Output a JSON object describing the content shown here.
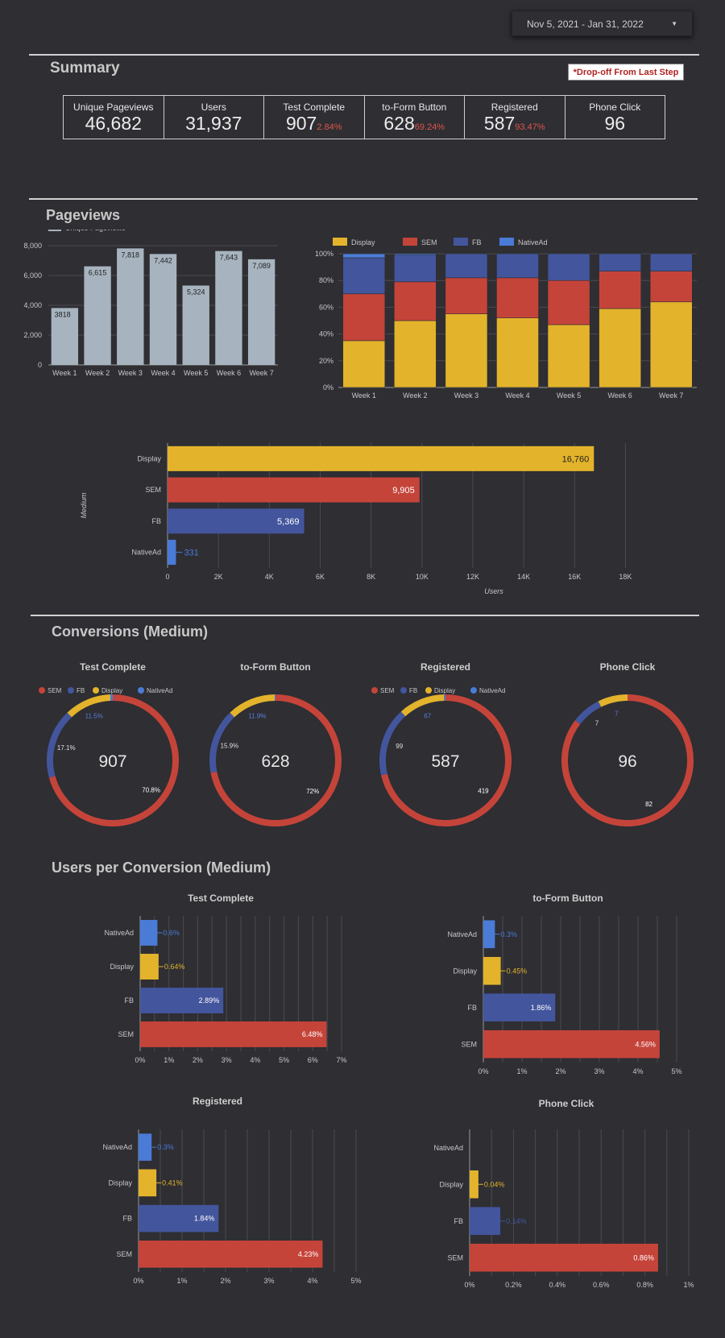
{
  "date_range": {
    "label": "Nov 5, 2021 - Jan 31, 2022",
    "arrow_icon": "caret-down-icon"
  },
  "summary": {
    "title": "Summary",
    "note": "*Drop-off From Last Step",
    "kpis": [
      {
        "label": "Unique Pageviews",
        "value": "46,682",
        "pct": ""
      },
      {
        "label": "Users",
        "value": "31,937",
        "pct": ""
      },
      {
        "label": "Test Complete",
        "value": "907",
        "pct": "2.84%"
      },
      {
        "label": "to-Form Button",
        "value": "628",
        "pct": "69.24%"
      },
      {
        "label": "Registered",
        "value": "587",
        "pct": "93.47%"
      },
      {
        "label": "Phone Click",
        "value": "96",
        "pct": ""
      }
    ]
  },
  "sections": {
    "pageviews": "Pageviews",
    "conversions": "Conversions (Medium)",
    "users_per_conversion": "Users per Conversion (Medium)"
  },
  "colors": {
    "Display": "#e3b32b",
    "SEM": "#c5443a",
    "FB": "#43559c",
    "NativeAd": "#4a7bd6",
    "Pageviews": "#a7b4bf"
  },
  "chart_data": [
    {
      "id": "weekly-pageviews",
      "type": "bar",
      "categories": [
        "Week 1",
        "Week 2",
        "Week 3",
        "Week 4",
        "Week 5",
        "Week 6",
        "Week 7"
      ],
      "series": [
        {
          "name": "Unique Pageviews",
          "values": [
            3818,
            6615,
            7818,
            7442,
            5324,
            7643,
            7089
          ]
        }
      ],
      "data_labels": [
        "3818",
        "6,615",
        "7,818",
        "7,442",
        "5,324",
        "7,643",
        "7,089"
      ],
      "ylim": [
        0,
        8000
      ],
      "yticks": [
        "0",
        "2,000",
        "4,000",
        "6,000",
        "8,000"
      ],
      "legend": "top-left",
      "grid": true
    },
    {
      "id": "weekly-medium-share",
      "type": "bar",
      "stacked": true,
      "percent": true,
      "categories": [
        "Week 1",
        "Week 2",
        "Week 3",
        "Week 4",
        "Week 5",
        "Week 6",
        "Week 7"
      ],
      "series": [
        {
          "name": "Display",
          "values": [
            35,
            50,
            55,
            52,
            47,
            59,
            64
          ]
        },
        {
          "name": "SEM",
          "values": [
            35,
            29,
            27,
            30,
            33,
            28,
            23
          ]
        },
        {
          "name": "FB",
          "values": [
            27,
            20,
            18,
            18,
            20,
            13,
            13
          ]
        },
        {
          "name": "NativeAd",
          "values": [
            3,
            1,
            0,
            0,
            0,
            0,
            0
          ]
        }
      ],
      "ylim": [
        0,
        100
      ],
      "yticks": [
        "0%",
        "20%",
        "40%",
        "60%",
        "80%",
        "100%"
      ],
      "legend": "top-left",
      "grid": true
    },
    {
      "id": "users-by-medium",
      "type": "bar",
      "orientation": "horizontal",
      "categories": [
        "Display",
        "SEM",
        "FB",
        "NativeAd"
      ],
      "values": [
        16760,
        9905,
        5369,
        331
      ],
      "data_labels": [
        "16,760",
        "9,905",
        "5,369",
        "331"
      ],
      "xlabel": "Users",
      "ylabel": "Medium",
      "xlim": [
        0,
        19000
      ],
      "xticks": [
        "0",
        "2K",
        "4K",
        "6K",
        "8K",
        "10K",
        "12K",
        "14K",
        "16K",
        "18K"
      ],
      "grid": true
    },
    {
      "id": "donut-test-complete",
      "type": "pie",
      "donut": true,
      "title": "Test Complete",
      "center": "907",
      "categories": [
        "SEM",
        "FB",
        "Display",
        "NativeAd"
      ],
      "values": [
        70.8,
        17.1,
        11.5,
        0.6
      ],
      "data_labels": [
        "70.8%",
        "17.1%",
        "11.5%",
        ""
      ],
      "legend": [
        "SEM",
        "FB",
        "Display",
        "NativeAd"
      ]
    },
    {
      "id": "donut-to-form",
      "type": "pie",
      "donut": true,
      "title": "to-Form Button",
      "center": "628",
      "categories": [
        "SEM",
        "FB",
        "Display",
        "NativeAd"
      ],
      "values": [
        72,
        15.9,
        11.9,
        0.2
      ],
      "data_labels": [
        "72%",
        "15.9%",
        "11.9%",
        ""
      ],
      "legend": []
    },
    {
      "id": "donut-registered",
      "type": "pie",
      "donut": true,
      "title": "Registered",
      "center": "587",
      "categories": [
        "SEM",
        "FB",
        "Display",
        "NativeAd"
      ],
      "values": [
        419,
        99,
        67,
        2
      ],
      "data_labels": [
        "419",
        "99",
        "67",
        ""
      ],
      "legend": [
        "SEM",
        "FB",
        "Display",
        "NativeAd"
      ]
    },
    {
      "id": "donut-phone-click",
      "type": "pie",
      "donut": true,
      "title": "Phone Click",
      "center": "96",
      "categories": [
        "SEM",
        "FB",
        "Display"
      ],
      "values": [
        82,
        7,
        7
      ],
      "data_labels": [
        "82",
        "7",
        "7"
      ],
      "legend": []
    },
    {
      "id": "upc-test-complete",
      "type": "bar",
      "orientation": "horizontal",
      "title": "Test Complete",
      "categories": [
        "NativeAd",
        "Display",
        "FB",
        "SEM"
      ],
      "values": [
        0.6,
        0.64,
        2.89,
        6.48
      ],
      "data_labels": [
        "0.6%",
        "0.64%",
        "2.89%",
        "6.48%"
      ],
      "xlim": [
        0,
        7
      ],
      "xticks": [
        "0%",
        "1%",
        "2%",
        "3%",
        "4%",
        "5%",
        "6%",
        "7%"
      ]
    },
    {
      "id": "upc-to-form",
      "type": "bar",
      "orientation": "horizontal",
      "title": "to-Form Button",
      "categories": [
        "NativeAd",
        "Display",
        "FB",
        "SEM"
      ],
      "values": [
        0.3,
        0.45,
        1.86,
        4.56
      ],
      "data_labels": [
        "0.3%",
        "0.45%",
        "1.86%",
        "4.56%"
      ],
      "xlim": [
        0,
        5
      ],
      "xticks": [
        "0%",
        "1%",
        "2%",
        "3%",
        "4%",
        "5%"
      ]
    },
    {
      "id": "upc-registered",
      "type": "bar",
      "orientation": "horizontal",
      "title": "Registered",
      "categories": [
        "NativeAd",
        "Display",
        "FB",
        "SEM"
      ],
      "values": [
        0.3,
        0.41,
        1.84,
        4.23
      ],
      "data_labels": [
        "0.3%",
        "0.41%",
        "1.84%",
        "4.23%"
      ],
      "xlim": [
        0,
        5
      ],
      "xticks": [
        "0%",
        "1%",
        "2%",
        "3%",
        "4%",
        "5%"
      ]
    },
    {
      "id": "upc-phone-click",
      "type": "bar",
      "orientation": "horizontal",
      "title": "Phone Click",
      "categories": [
        "NativeAd",
        "Display",
        "FB",
        "SEM"
      ],
      "values": [
        0,
        0.04,
        0.14,
        0.86
      ],
      "data_labels": [
        "",
        "0.04%",
        "0.14%",
        "0.86%"
      ],
      "xlim": [
        0,
        1
      ],
      "xticks": [
        "0%",
        "0.2%",
        "0.4%",
        "0.6%",
        "0.8%",
        "1%"
      ]
    }
  ]
}
